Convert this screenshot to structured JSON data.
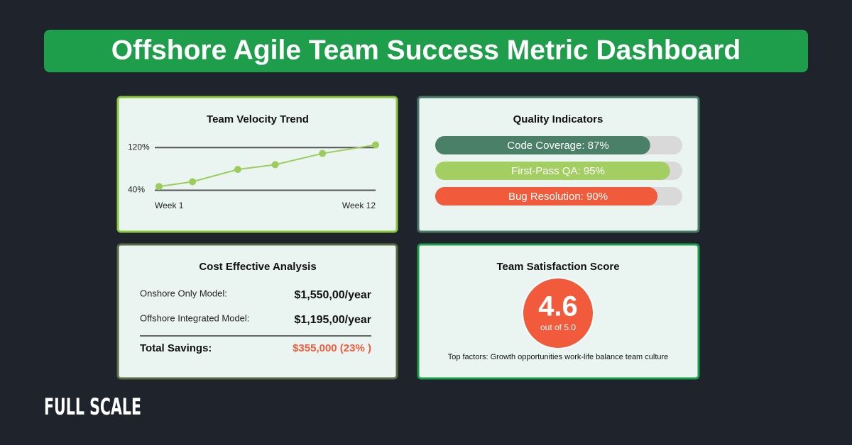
{
  "header": {
    "title": "Offshore Agile Team Success Metric Dashboard"
  },
  "chart_data": {
    "type": "line",
    "title": "Team Velocity Trend",
    "x": [
      1,
      2.7,
      5,
      6.9,
      9.3,
      12
    ],
    "values": [
      47,
      56,
      79,
      88,
      109,
      125
    ],
    "color": "#9ccc5a",
    "xlim": [
      1,
      12
    ],
    "xticks": [
      {
        "value": 1,
        "label": "Week 1"
      },
      {
        "value": 12,
        "label": "Week 12"
      }
    ],
    "ylim": [
      30,
      135
    ],
    "yticks": [
      {
        "value": 40,
        "label": "40%"
      },
      {
        "value": 120,
        "label": "120%"
      }
    ],
    "grid": true
  },
  "quality": {
    "title": "Quality Indicators",
    "bars": [
      {
        "label": "Code Coverage: 87%",
        "value": 87,
        "color": "#4a8068"
      },
      {
        "label": "First-Pass QA: 95%",
        "value": 95,
        "color": "#a3cf62"
      },
      {
        "label": "Bug Resolution: 90%",
        "value": 90,
        "color": "#f15a3a"
      }
    ]
  },
  "cost": {
    "title": "Cost Effective Analysis",
    "rows": [
      {
        "label": "Onshore Only Model:",
        "value": "$1,550,00/year"
      },
      {
        "label": "Offshore Integrated Model:",
        "value": "$1,195,00/year"
      }
    ],
    "total": {
      "label": "Total Savings:",
      "value": "$355,000 (23% )"
    }
  },
  "satisfaction": {
    "title": "Team Satisfaction Score",
    "score": "4.6",
    "scale": "out of 5.0",
    "factors": "Top factors: Growth opportunities work-life balance team culture"
  },
  "footer": {
    "logo": "FULL SCALE"
  }
}
